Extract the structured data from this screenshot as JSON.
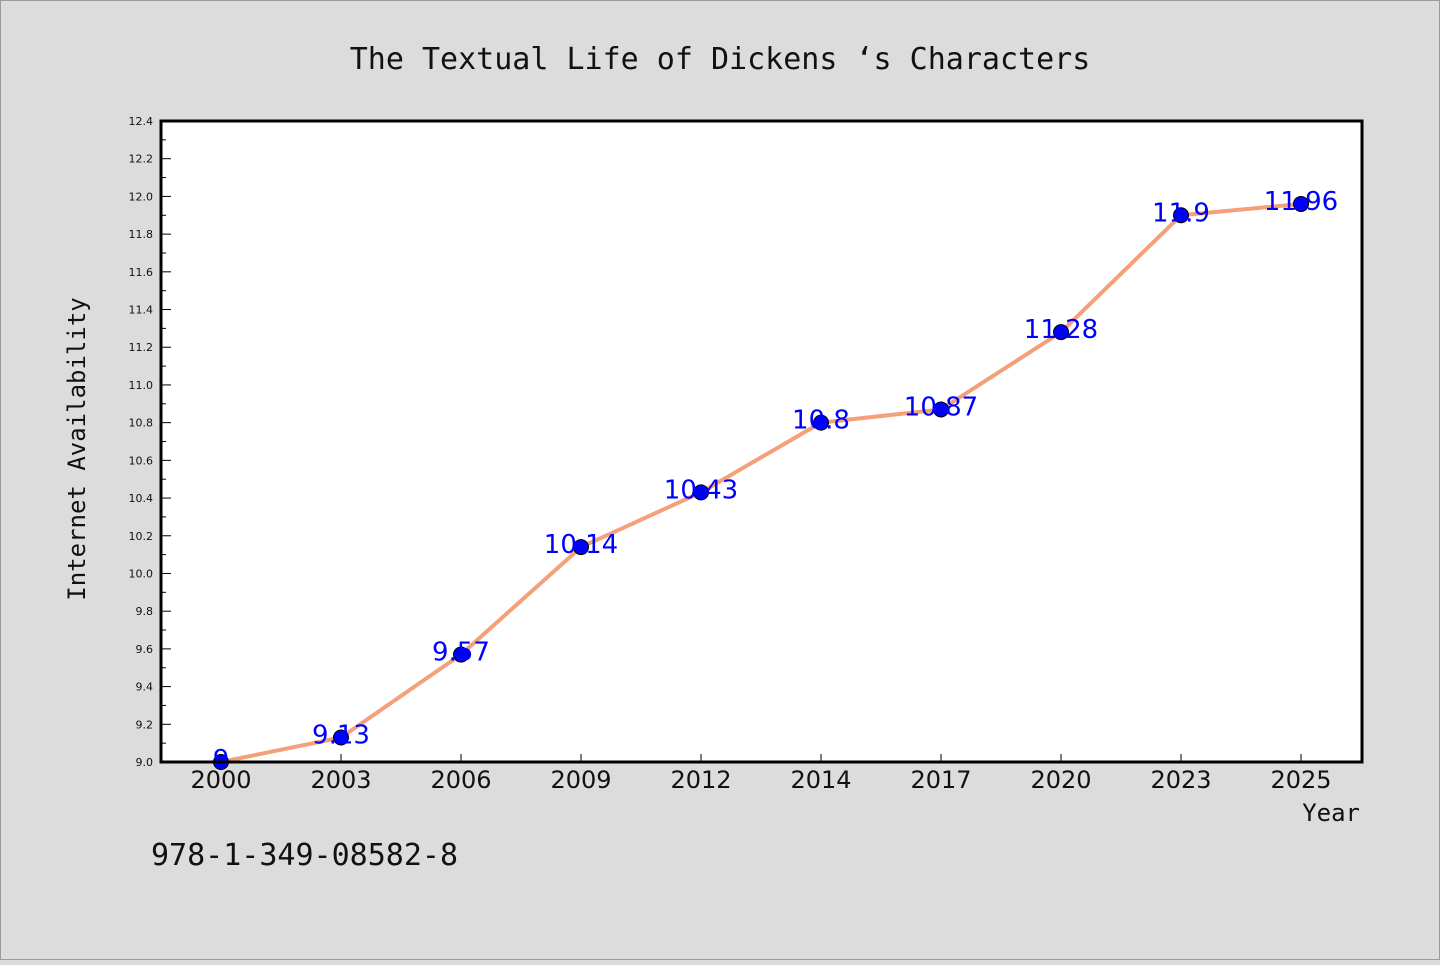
{
  "chart_data": {
    "type": "line",
    "title": "The Textual Life of Dickens ‘s Characters",
    "xlabel": "Year",
    "ylabel": "Internet Availability",
    "categories": [
      "2000",
      "2003",
      "2006",
      "2009",
      "2012",
      "2014",
      "2017",
      "2020",
      "2023",
      "2025"
    ],
    "series": [
      {
        "values": [
          9,
          9.13,
          9.57,
          10.14,
          10.43,
          10.8,
          10.87,
          11.28,
          11.9,
          11.96
        ],
        "data_labels": [
          "9",
          "9.13",
          "9.57",
          "10.14",
          "10.43",
          "10.8",
          "10.87",
          "11.28",
          "11.9",
          "11.96"
        ],
        "line_color": "#f4a07a",
        "marker_color": "#0000ff"
      }
    ],
    "ylim": [
      9.0,
      12.4
    ],
    "y_ticks": [
      "9.0",
      "9.2",
      "9.4",
      "9.6",
      "9.8",
      "10.0",
      "10.2",
      "10.4",
      "10.6",
      "10.8",
      "11.0",
      "11.2",
      "11.4",
      "11.6",
      "11.8",
      "12.0",
      "12.2",
      "12.4"
    ],
    "grid": false,
    "legend": "none"
  },
  "footnote": "978-1-349-08582-8"
}
